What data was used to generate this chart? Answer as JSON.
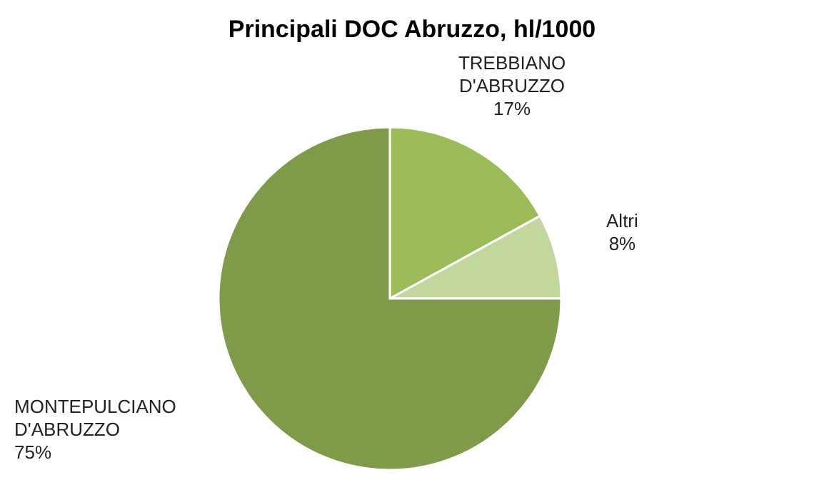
{
  "chart_data": {
    "type": "pie",
    "title": "Principali DOC Abruzzo, hl/1000",
    "categories": [
      "TREBBIANO D'ABRUZZO",
      "Altri",
      "MONTEPULCIANO D'ABRUZZO"
    ],
    "values": [
      17,
      8,
      75
    ],
    "value_labels": [
      "17%",
      "8%",
      "75%"
    ],
    "colors": [
      "#9bbb59",
      "#c3d69b",
      "#7f9a48"
    ]
  }
}
